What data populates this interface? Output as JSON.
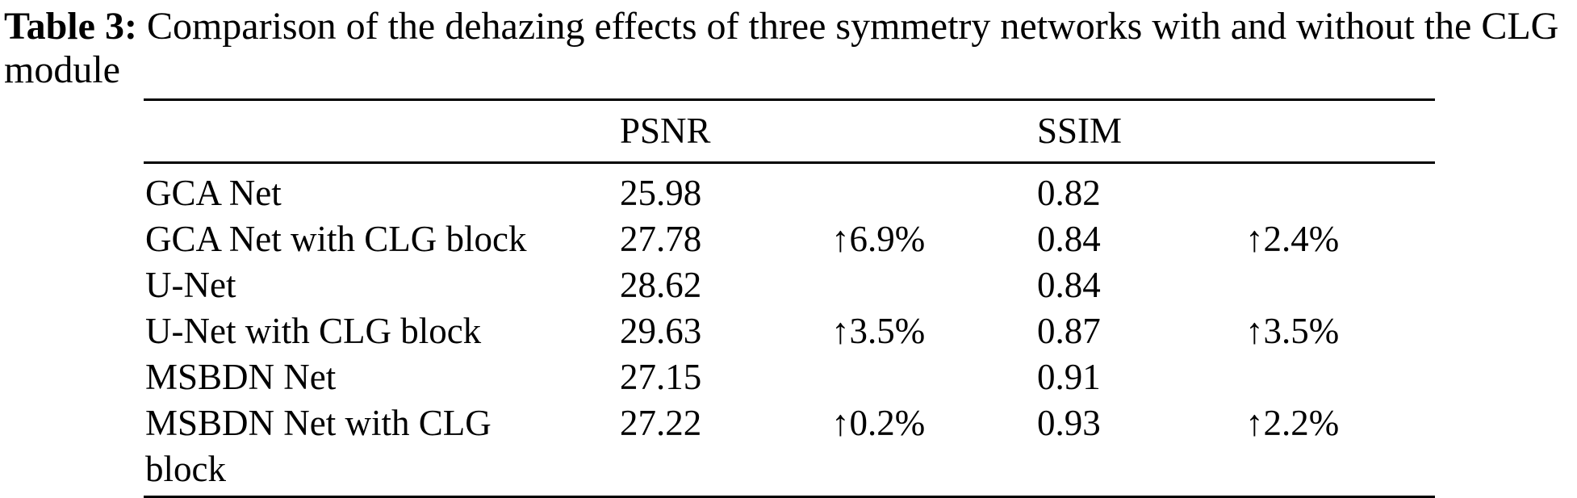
{
  "caption": {
    "label": "Table 3:",
    "text": " Comparison of the dehazing effects of three symmetry networks with and without the CLG module"
  },
  "table": {
    "header": {
      "psnr": "PSNR",
      "ssim": "SSIM"
    },
    "rows": [
      {
        "model": "GCA Net",
        "psnr": "25.98",
        "psnr_gain": "",
        "ssim": "0.82",
        "ssim_gain": ""
      },
      {
        "model": "GCA Net with CLG block",
        "psnr": "27.78",
        "psnr_gain": "↑6.9%",
        "ssim": "0.84",
        "ssim_gain": "↑2.4%"
      },
      {
        "model": "U-Net",
        "psnr": "28.62",
        "psnr_gain": "",
        "ssim": "0.84",
        "ssim_gain": ""
      },
      {
        "model": "U-Net with CLG block",
        "psnr": "29.63",
        "psnr_gain": "↑3.5%",
        "ssim": "0.87",
        "ssim_gain": "↑3.5%"
      },
      {
        "model": "MSBDN Net",
        "psnr": "27.15",
        "psnr_gain": "",
        "ssim": "0.91",
        "ssim_gain": ""
      },
      {
        "model": "MSBDN Net with CLG block",
        "psnr": "27.22",
        "psnr_gain": "↑0.2%",
        "ssim": "0.93",
        "ssim_gain": "↑2.2%"
      }
    ]
  },
  "colors": {
    "text": "#000000",
    "background": "#ffffff",
    "rule": "#000000"
  }
}
